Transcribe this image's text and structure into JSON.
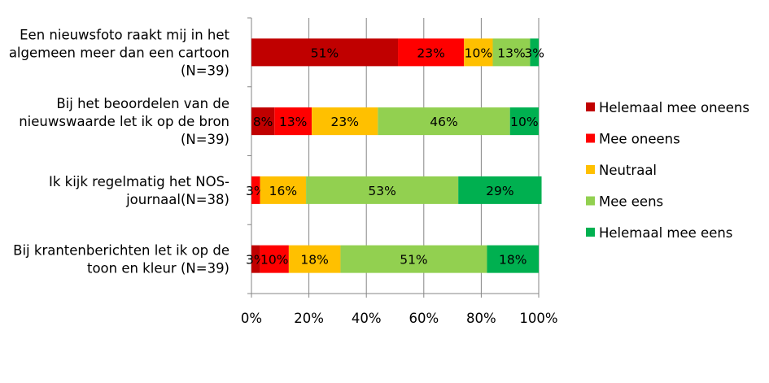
{
  "chart_data": {
    "type": "bar",
    "orientation": "horizontal",
    "stacked": "percent",
    "categories": [
      "Een nieuwsfoto raakt mij in het algemeen meer dan een cartoon (N=39)",
      "Bij het beoordelen van de nieuwswaarde let ik op de bron (N=39)",
      "Ik kijk regelmatig het NOS-journaal(N=38)",
      "Bij krantenberichten let ik op de toon en kleur (N=39)"
    ],
    "category_lines": [
      [
        "Een nieuwsfoto raakt mij in het",
        "algemeen meer dan een cartoon",
        "(N=39)"
      ],
      [
        "Bij het beoordelen van de",
        "nieuwswaarde let ik op de bron",
        "(N=39)"
      ],
      [
        "Ik kijk regelmatig het NOS-",
        "journaal(N=38)"
      ],
      [
        "Bij krantenberichten let ik op de",
        "toon en kleur (N=39)"
      ]
    ],
    "series": [
      {
        "name": "Helemaal mee oneens",
        "color": "#C00000",
        "values": [
          51,
          8,
          0,
          3
        ],
        "labels": [
          "51%",
          "8%",
          "",
          "3%"
        ]
      },
      {
        "name": "Mee oneens",
        "color": "#FF0000",
        "values": [
          23,
          13,
          3,
          10
        ],
        "labels": [
          "23%",
          "13%",
          "3%",
          "10%"
        ]
      },
      {
        "name": "Neutraal",
        "color": "#FFC000",
        "values": [
          10,
          23,
          16,
          18
        ],
        "labels": [
          "10%",
          "23%",
          "16%",
          "18%"
        ]
      },
      {
        "name": "Mee eens",
        "color": "#92D050",
        "values": [
          13,
          46,
          53,
          51
        ],
        "labels": [
          "13%",
          "46%",
          "53%",
          "51%"
        ]
      },
      {
        "name": "Helemaal mee eens",
        "color": "#00B050",
        "values": [
          3,
          10,
          29,
          18
        ],
        "labels": [
          "3%",
          "10%",
          "29%",
          "18%"
        ]
      }
    ],
    "xlim": [
      0,
      100
    ],
    "xticks": [
      "0%",
      "20%",
      "40%",
      "60%",
      "80%",
      "100%"
    ],
    "grid": "vertical",
    "legend": "right"
  }
}
